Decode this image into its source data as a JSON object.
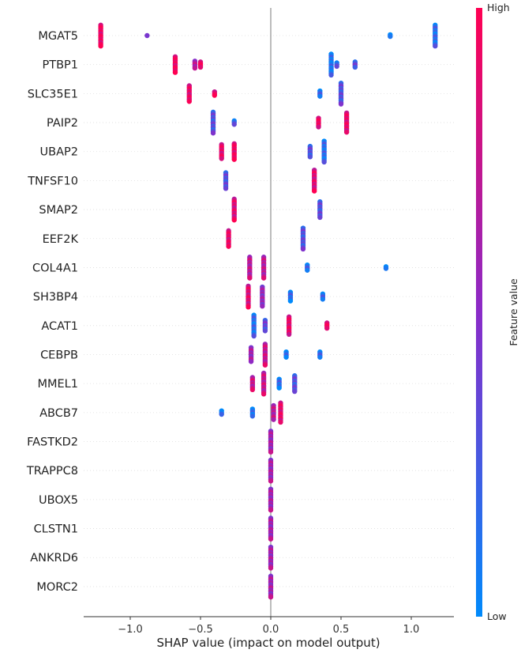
{
  "chart_data": {
    "type": "scatter",
    "subtype": "shap-beeswarm",
    "title": "",
    "xlabel": "SHAP value (impact on model output)",
    "ylabel": "",
    "xlim": [
      -1.33,
      1.3
    ],
    "xticks": [
      -1.0,
      -0.5,
      0.0,
      0.5,
      1.0
    ],
    "xtick_labels": [
      "−1.0",
      "−0.5",
      "0.0",
      "0.5",
      "1.0"
    ],
    "grid": false,
    "colorbar": {
      "label": "Feature value",
      "high_label": "High",
      "low_label": "Low",
      "low_color": "#008afb",
      "mid_color": "#8a2bc8",
      "high_color": "#ff0052"
    },
    "features": [
      {
        "name": "MGAT5",
        "clusters": [
          {
            "shap": -1.21,
            "count": 13,
            "feature_value": 0.95
          },
          {
            "shap": -0.88,
            "count": 1,
            "feature_value": 0.6
          },
          {
            "shap": 0.85,
            "count": 2,
            "feature_value": 0.1
          },
          {
            "shap": 1.17,
            "count": 13,
            "feature_value": 0.15
          }
        ]
      },
      {
        "name": "PTBP1",
        "clusters": [
          {
            "shap": -0.68,
            "count": 10,
            "feature_value": 0.95
          },
          {
            "shap": -0.54,
            "count": 5,
            "feature_value": 0.65
          },
          {
            "shap": -0.5,
            "count": 4,
            "feature_value": 0.95
          },
          {
            "shap": 0.43,
            "count": 13,
            "feature_value": 0.1
          },
          {
            "shap": 0.47,
            "count": 3,
            "feature_value": 0.2
          },
          {
            "shap": 0.6,
            "count": 4,
            "feature_value": 0.3
          }
        ]
      },
      {
        "name": "SLC35E1",
        "clusters": [
          {
            "shap": -0.58,
            "count": 10,
            "feature_value": 0.9
          },
          {
            "shap": -0.4,
            "count": 3,
            "feature_value": 0.9
          },
          {
            "shap": 0.35,
            "count": 4,
            "feature_value": 0.15
          },
          {
            "shap": 0.5,
            "count": 13,
            "feature_value": 0.3
          }
        ]
      },
      {
        "name": "PAIP2",
        "clusters": [
          {
            "shap": -0.41,
            "count": 13,
            "feature_value": 0.3
          },
          {
            "shap": -0.26,
            "count": 3,
            "feature_value": 0.2
          },
          {
            "shap": 0.34,
            "count": 6,
            "feature_value": 0.95
          },
          {
            "shap": 0.54,
            "count": 12,
            "feature_value": 0.9
          }
        ]
      },
      {
        "name": "UBAP2",
        "clusters": [
          {
            "shap": -0.35,
            "count": 9,
            "feature_value": 0.9
          },
          {
            "shap": -0.26,
            "count": 10,
            "feature_value": 0.95
          },
          {
            "shap": 0.28,
            "count": 7,
            "feature_value": 0.3
          },
          {
            "shap": 0.38,
            "count": 13,
            "feature_value": 0.15
          }
        ]
      },
      {
        "name": "TNFSF10",
        "clusters": [
          {
            "shap": -0.32,
            "count": 10,
            "feature_value": 0.3
          },
          {
            "shap": 0.31,
            "count": 13,
            "feature_value": 0.85
          }
        ]
      },
      {
        "name": "SMAP2",
        "clusters": [
          {
            "shap": -0.26,
            "count": 13,
            "feature_value": 0.85
          },
          {
            "shap": 0.35,
            "count": 10,
            "feature_value": 0.3
          }
        ]
      },
      {
        "name": "EEF2K",
        "clusters": [
          {
            "shap": -0.3,
            "count": 10,
            "feature_value": 0.9
          },
          {
            "shap": 0.23,
            "count": 13,
            "feature_value": 0.3
          }
        ]
      },
      {
        "name": "COL4A1",
        "clusters": [
          {
            "shap": -0.15,
            "count": 13,
            "feature_value": 0.7
          },
          {
            "shap": -0.05,
            "count": 13,
            "feature_value": 0.7
          },
          {
            "shap": 0.26,
            "count": 4,
            "feature_value": 0.15
          },
          {
            "shap": 0.82,
            "count": 2,
            "feature_value": 0.1
          }
        ]
      },
      {
        "name": "SH3BP4",
        "clusters": [
          {
            "shap": -0.16,
            "count": 13,
            "feature_value": 0.85
          },
          {
            "shap": -0.06,
            "count": 12,
            "feature_value": 0.55
          },
          {
            "shap": 0.14,
            "count": 6,
            "feature_value": 0.15
          },
          {
            "shap": 0.37,
            "count": 4,
            "feature_value": 0.15
          }
        ]
      },
      {
        "name": "ACAT1",
        "clusters": [
          {
            "shap": -0.12,
            "count": 13,
            "feature_value": 0.15
          },
          {
            "shap": -0.04,
            "count": 7,
            "feature_value": 0.35
          },
          {
            "shap": 0.13,
            "count": 11,
            "feature_value": 0.9
          },
          {
            "shap": 0.4,
            "count": 4,
            "feature_value": 0.95
          }
        ]
      },
      {
        "name": "CEBPB",
        "clusters": [
          {
            "shap": -0.14,
            "count": 9,
            "feature_value": 0.6
          },
          {
            "shap": -0.04,
            "count": 13,
            "feature_value": 0.75
          },
          {
            "shap": 0.11,
            "count": 4,
            "feature_value": 0.1
          },
          {
            "shap": 0.35,
            "count": 4,
            "feature_value": 0.15
          }
        ]
      },
      {
        "name": "MMEL1",
        "clusters": [
          {
            "shap": -0.13,
            "count": 8,
            "feature_value": 0.75
          },
          {
            "shap": -0.05,
            "count": 13,
            "feature_value": 0.75
          },
          {
            "shap": 0.06,
            "count": 6,
            "feature_value": 0.15
          },
          {
            "shap": 0.17,
            "count": 10,
            "feature_value": 0.3
          }
        ]
      },
      {
        "name": "ABCB7",
        "clusters": [
          {
            "shap": -0.35,
            "count": 3,
            "feature_value": 0.05
          },
          {
            "shap": -0.13,
            "count": 5,
            "feature_value": 0.1
          },
          {
            "shap": 0.02,
            "count": 9,
            "feature_value": 0.7
          },
          {
            "shap": 0.07,
            "count": 12,
            "feature_value": 0.9
          }
        ]
      },
      {
        "name": "FASTKD2",
        "clusters": [
          {
            "shap": 0.0,
            "count": 13,
            "feature_value": 0.6
          }
        ]
      },
      {
        "name": "TRAPPC8",
        "clusters": [
          {
            "shap": 0.0,
            "count": 13,
            "feature_value": 0.6
          }
        ]
      },
      {
        "name": "UBOX5",
        "clusters": [
          {
            "shap": 0.0,
            "count": 13,
            "feature_value": 0.6
          }
        ]
      },
      {
        "name": "CLSTN1",
        "clusters": [
          {
            "shap": 0.0,
            "count": 13,
            "feature_value": 0.6
          }
        ]
      },
      {
        "name": "ANKRD6",
        "clusters": [
          {
            "shap": 0.0,
            "count": 13,
            "feature_value": 0.6
          }
        ]
      },
      {
        "name": "MORC2",
        "clusters": [
          {
            "shap": 0.0,
            "count": 13,
            "feature_value": 0.6
          }
        ]
      }
    ]
  }
}
